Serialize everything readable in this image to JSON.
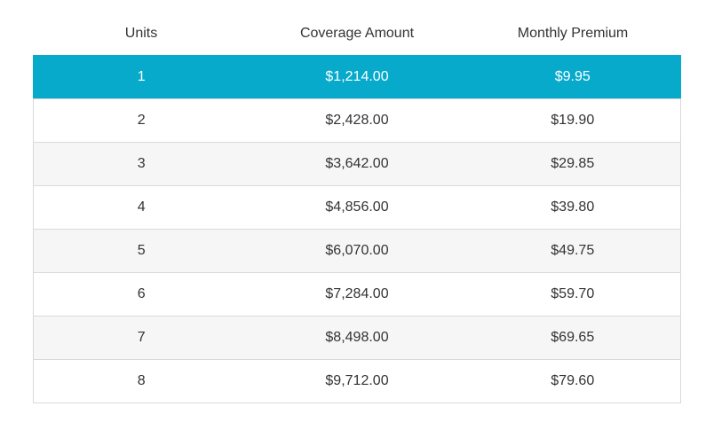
{
  "table": {
    "headers": [
      "Units",
      "Coverage Amount",
      "Monthly Premium"
    ],
    "selected_index": 0,
    "accent_color": "#08aacc",
    "rows": [
      {
        "units": "1",
        "coverage": "$1,214.00",
        "premium": "$9.95"
      },
      {
        "units": "2",
        "coverage": "$2,428.00",
        "premium": "$19.90"
      },
      {
        "units": "3",
        "coverage": "$3,642.00",
        "premium": "$29.85"
      },
      {
        "units": "4",
        "coverage": "$4,856.00",
        "premium": "$39.80"
      },
      {
        "units": "5",
        "coverage": "$6,070.00",
        "premium": "$49.75"
      },
      {
        "units": "6",
        "coverage": "$7,284.00",
        "premium": "$59.70"
      },
      {
        "units": "7",
        "coverage": "$8,498.00",
        "premium": "$69.65"
      },
      {
        "units": "8",
        "coverage": "$9,712.00",
        "premium": "$79.60"
      }
    ]
  }
}
